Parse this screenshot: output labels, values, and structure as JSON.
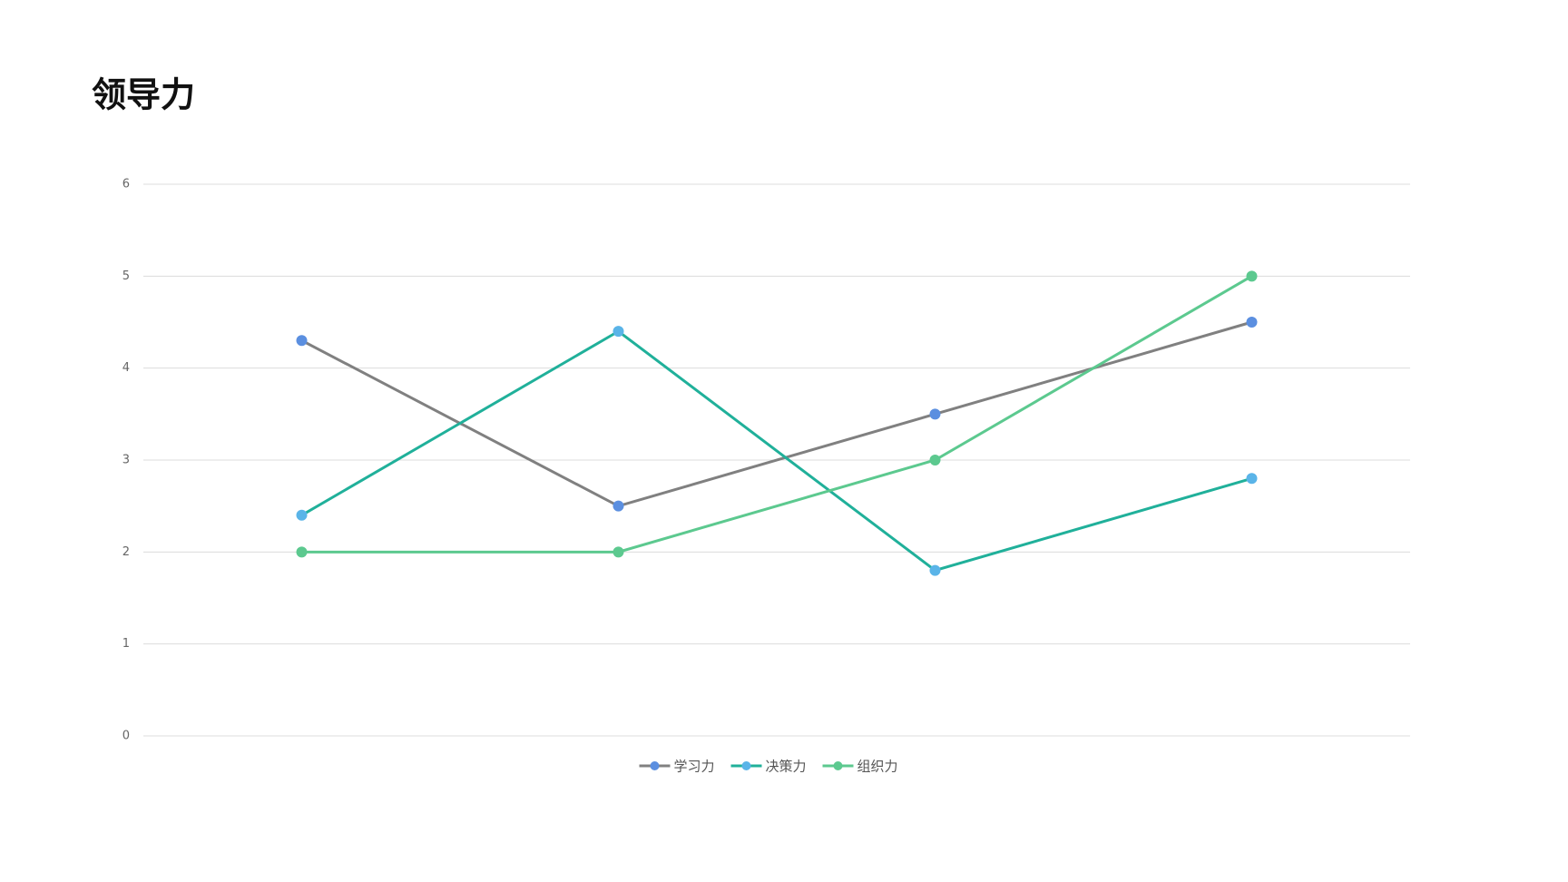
{
  "chart_data": {
    "type": "line",
    "title": "领导力",
    "categories": [
      null,
      null,
      null,
      null
    ],
    "series": [
      {
        "name": "学习力",
        "color": "#808080",
        "marker_color": "#5b8fe0",
        "values": [
          4.3,
          2.5,
          3.5,
          4.5
        ]
      },
      {
        "name": "决策力",
        "color": "#20b09a",
        "marker_color": "#5ab4e8",
        "values": [
          2.4,
          4.4,
          1.8,
          2.8
        ]
      },
      {
        "name": "组织力",
        "color": "#5cc98f",
        "marker_color": "#5cc98f",
        "values": [
          2,
          2,
          3,
          5
        ]
      }
    ],
    "ylim": [
      0,
      6
    ],
    "yticks": [
      0,
      1,
      2,
      3,
      4,
      5,
      6
    ],
    "grid": true,
    "legend": "bottom"
  }
}
